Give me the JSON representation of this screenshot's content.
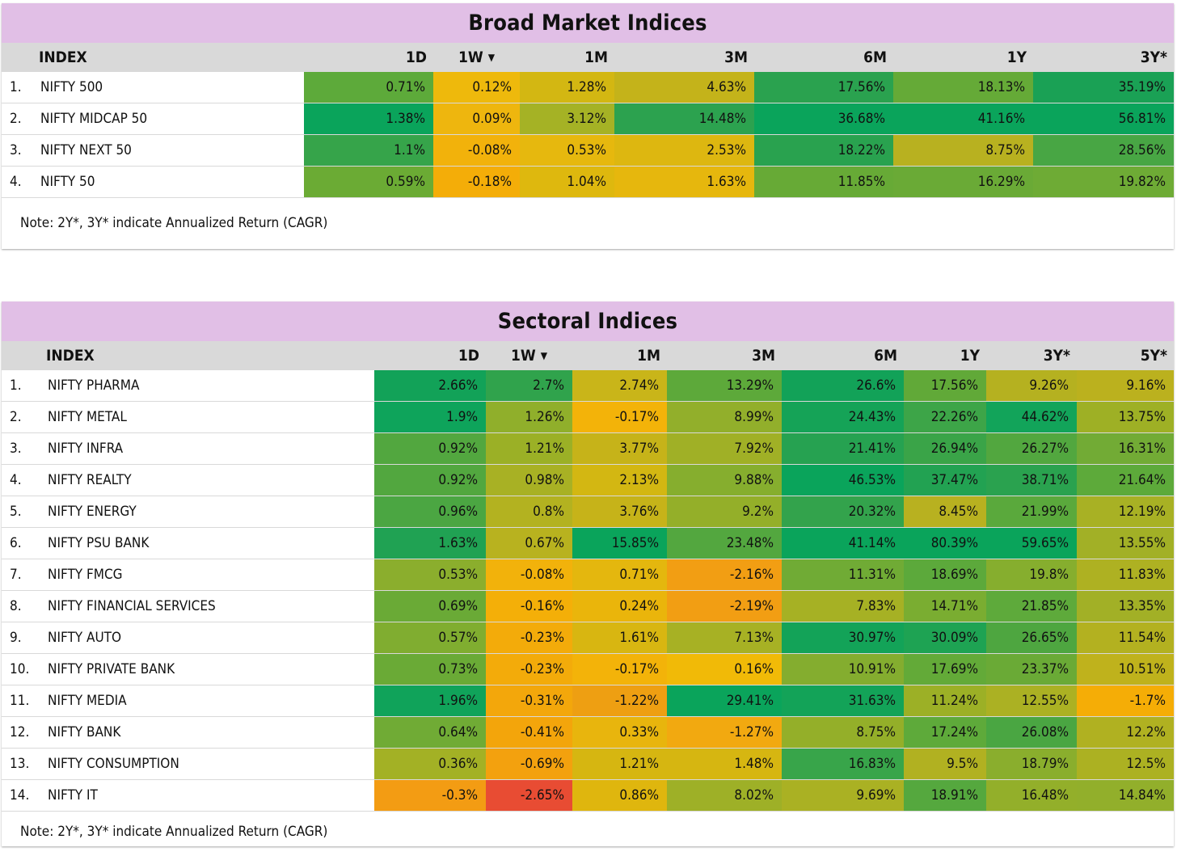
{
  "broad": {
    "title": "Broad Market Indices",
    "headers": {
      "index": "INDEX",
      "periods": [
        "1D",
        "1W",
        "1M",
        "3M",
        "6M",
        "1Y",
        "3Y*"
      ]
    },
    "sorted_column": "1W",
    "rows": [
      {
        "num": "1.",
        "name": "NIFTY 500",
        "values": [
          "0.71%",
          "0.12%",
          "1.28%",
          "4.63%",
          "17.56%",
          "18.13%",
          "35.19%"
        ]
      },
      {
        "num": "2.",
        "name": "NIFTY MIDCAP 50",
        "values": [
          "1.38%",
          "0.09%",
          "3.12%",
          "14.48%",
          "36.68%",
          "41.16%",
          "56.81%"
        ]
      },
      {
        "num": "3.",
        "name": "NIFTY NEXT 50",
        "values": [
          "1.1%",
          "-0.08%",
          "0.53%",
          "2.53%",
          "18.22%",
          "8.75%",
          "28.56%"
        ]
      },
      {
        "num": "4.",
        "name": "NIFTY 50",
        "values": [
          "0.59%",
          "-0.18%",
          "1.04%",
          "1.63%",
          "11.85%",
          "16.29%",
          "19.82%"
        ]
      }
    ],
    "colors": [
      [
        "#5daa3a",
        "#eeb90c",
        "#d3b712",
        "#c4b31a",
        "#2aa24f",
        "#65aa37",
        "#1aa155"
      ],
      [
        "#0aa45b",
        "#eeb60e",
        "#a5b225",
        "#2ca24f",
        "#0aa45b",
        "#0aa45b",
        "#0aa45b"
      ],
      [
        "#36a44a",
        "#f2b20b",
        "#e6b80e",
        "#ddb710",
        "#29a24f",
        "#b8b120",
        "#48a644"
      ],
      [
        "#6bab34",
        "#f4ad08",
        "#deb80e",
        "#e6b70d",
        "#67aa36",
        "#6aaa36",
        "#6eab35"
      ]
    ],
    "note": "Note: 2Y*, 3Y* indicate Annualized Return (CAGR)"
  },
  "sector": {
    "title": "Sectoral Indices",
    "headers": {
      "index": "INDEX",
      "periods": [
        "1D",
        "1W",
        "1M",
        "3M",
        "6M",
        "1Y",
        "3Y*",
        "5Y*"
      ]
    },
    "sorted_column": "1W",
    "rows": [
      {
        "num": "1.",
        "name": "NIFTY PHARMA",
        "values": [
          "2.66%",
          "2.7%",
          "2.74%",
          "13.29%",
          "26.6%",
          "17.56%",
          "9.26%",
          "9.16%"
        ]
      },
      {
        "num": "2.",
        "name": "NIFTY METAL",
        "values": [
          "1.9%",
          "1.26%",
          "-0.17%",
          "8.99%",
          "24.43%",
          "22.26%",
          "44.62%",
          "13.75%"
        ]
      },
      {
        "num": "3.",
        "name": "NIFTY INFRA",
        "values": [
          "0.92%",
          "1.21%",
          "3.77%",
          "7.92%",
          "21.41%",
          "26.94%",
          "26.27%",
          "16.31%"
        ]
      },
      {
        "num": "4.",
        "name": "NIFTY REALTY",
        "values": [
          "0.92%",
          "0.98%",
          "2.13%",
          "9.88%",
          "46.53%",
          "37.47%",
          "38.71%",
          "21.64%"
        ]
      },
      {
        "num": "5.",
        "name": "NIFTY ENERGY",
        "values": [
          "0.96%",
          "0.8%",
          "3.76%",
          "9.2%",
          "20.32%",
          "8.45%",
          "21.99%",
          "12.19%"
        ]
      },
      {
        "num": "6.",
        "name": "NIFTY PSU BANK",
        "values": [
          "1.63%",
          "0.67%",
          "15.85%",
          "23.48%",
          "41.14%",
          "80.39%",
          "59.65%",
          "13.55%"
        ]
      },
      {
        "num": "7.",
        "name": "NIFTY FMCG",
        "values": [
          "0.53%",
          "-0.08%",
          "0.71%",
          "-2.16%",
          "11.31%",
          "18.69%",
          "19.8%",
          "11.83%"
        ]
      },
      {
        "num": "8.",
        "name": "NIFTY FINANCIAL SERVICES",
        "values": [
          "0.69%",
          "-0.16%",
          "0.24%",
          "-2.19%",
          "7.83%",
          "14.71%",
          "21.85%",
          "13.35%"
        ]
      },
      {
        "num": "9.",
        "name": "NIFTY AUTO",
        "values": [
          "0.57%",
          "-0.23%",
          "1.61%",
          "7.13%",
          "30.97%",
          "30.09%",
          "26.65%",
          "11.54%"
        ]
      },
      {
        "num": "10.",
        "name": "NIFTY PRIVATE BANK",
        "values": [
          "0.73%",
          "-0.23%",
          "-0.17%",
          "0.16%",
          "10.91%",
          "17.69%",
          "23.37%",
          "10.51%"
        ]
      },
      {
        "num": "11.",
        "name": "NIFTY MEDIA",
        "values": [
          "1.96%",
          "-0.31%",
          "-1.22%",
          "29.41%",
          "31.63%",
          "11.24%",
          "12.55%",
          "-1.7%"
        ]
      },
      {
        "num": "12.",
        "name": "NIFTY BANK",
        "values": [
          "0.64%",
          "-0.41%",
          "0.33%",
          "-1.27%",
          "8.75%",
          "17.24%",
          "26.08%",
          "12.2%"
        ]
      },
      {
        "num": "13.",
        "name": "NIFTY CONSUMPTION",
        "values": [
          "0.36%",
          "-0.69%",
          "1.21%",
          "1.48%",
          "16.83%",
          "9.5%",
          "18.79%",
          "12.5%"
        ]
      },
      {
        "num": "14.",
        "name": "NIFTY IT",
        "values": [
          "-0.3%",
          "-2.65%",
          "0.86%",
          "8.02%",
          "9.69%",
          "18.91%",
          "16.48%",
          "14.84%"
        ]
      }
    ],
    "colors": [
      [
        "#12a258",
        "#30a34c",
        "#c9b519",
        "#5da93a",
        "#12a258",
        "#61a938",
        "#b5b120",
        "#bbb11e"
      ],
      [
        "#0ea45b",
        "#90af2b",
        "#f3b309",
        "#92af2b",
        "#15a357",
        "#3da548",
        "#12a45a",
        "#9eb025"
      ],
      [
        "#52a73f",
        "#9bb026",
        "#c6b319",
        "#a0b026",
        "#26a251",
        "#3aa448",
        "#52a73f",
        "#72ab35"
      ],
      [
        "#52a73f",
        "#a8b124",
        "#d3b712",
        "#86ae2e",
        "#0aa45b",
        "#22a252",
        "#2aa24f",
        "#5daa3a"
      ],
      [
        "#4ba642",
        "#b3b220",
        "#c6b319",
        "#94af29",
        "#33a34c",
        "#b8b120",
        "#5aa93c",
        "#a8b124"
      ],
      [
        "#20a253",
        "#b8b21f",
        "#0aa45b",
        "#53a73f",
        "#0aa45b",
        "#0aa45b",
        "#0aa45b",
        "#a2b026"
      ],
      [
        "#8bae2d",
        "#f2b20b",
        "#e4b70e",
        "#f29e13",
        "#70ab35",
        "#5ca93b",
        "#86ae2e",
        "#aeb122"
      ],
      [
        "#6aaa36",
        "#f4af08",
        "#eab50b",
        "#f29e13",
        "#a6b124",
        "#7aad31",
        "#5eaa3b",
        "#a2b026"
      ],
      [
        "#80ad30",
        "#f3ab0a",
        "#d8b611",
        "#a7b124",
        "#13a358",
        "#1ea353",
        "#4ea640",
        "#b3b120"
      ],
      [
        "#6aaa36",
        "#f3ab0a",
        "#f3b309",
        "#f1ba07",
        "#84ad2f",
        "#63aa38",
        "#6aaa36",
        "#bfb21c"
      ],
      [
        "#10a35a",
        "#f3a70b",
        "#ee9f12",
        "#0aa45b",
        "#13a358",
        "#9cb026",
        "#abb123",
        "#f5ad06"
      ],
      [
        "#70ab35",
        "#f3a50b",
        "#e8b50d",
        "#f2a910",
        "#94af29",
        "#5eaa3a",
        "#4aa642",
        "#b0b121"
      ],
      [
        "#a3b125",
        "#f3a10e",
        "#d6b611",
        "#d6b611",
        "#38a54a",
        "#b1b121",
        "#8aae2d",
        "#acb122"
      ],
      [
        "#f39c13",
        "#e84c33",
        "#dfb60e",
        "#9eb027",
        "#aab123",
        "#55a83e",
        "#93af2a",
        "#92af2b"
      ]
    ],
    "note": "Note: 2Y*, 3Y* indicate Annualized Return (CAGR)"
  }
}
